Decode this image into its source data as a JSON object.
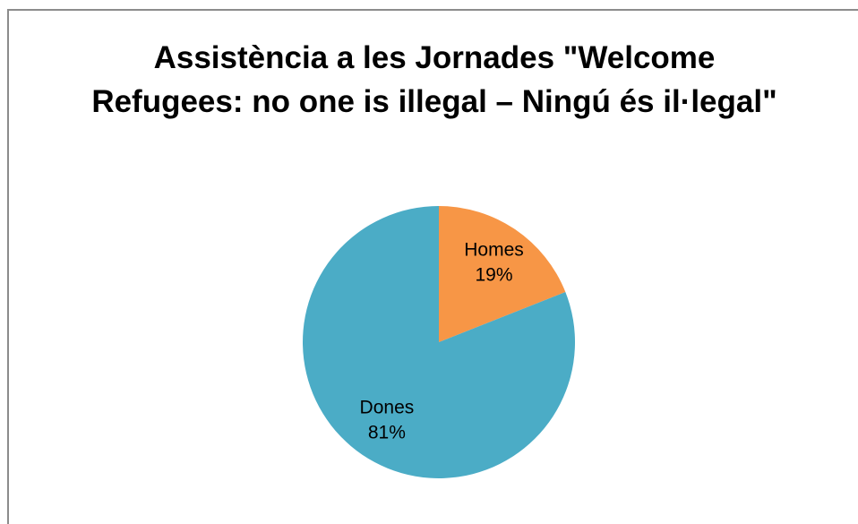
{
  "chart_data": {
    "type": "pie",
    "title": "Assistència a les Jornades \"Welcome Refugees: no one is illegal – Ningú és il·legal\"",
    "categories": [
      "Homes",
      "Dones"
    ],
    "values": [
      19,
      81
    ],
    "value_labels": [
      "19%",
      "81%"
    ],
    "colors": [
      "#F79646",
      "#4BACC6"
    ],
    "start_angle_deg": 0,
    "direction": "clockwise",
    "legend": "none",
    "labels": "inside"
  }
}
